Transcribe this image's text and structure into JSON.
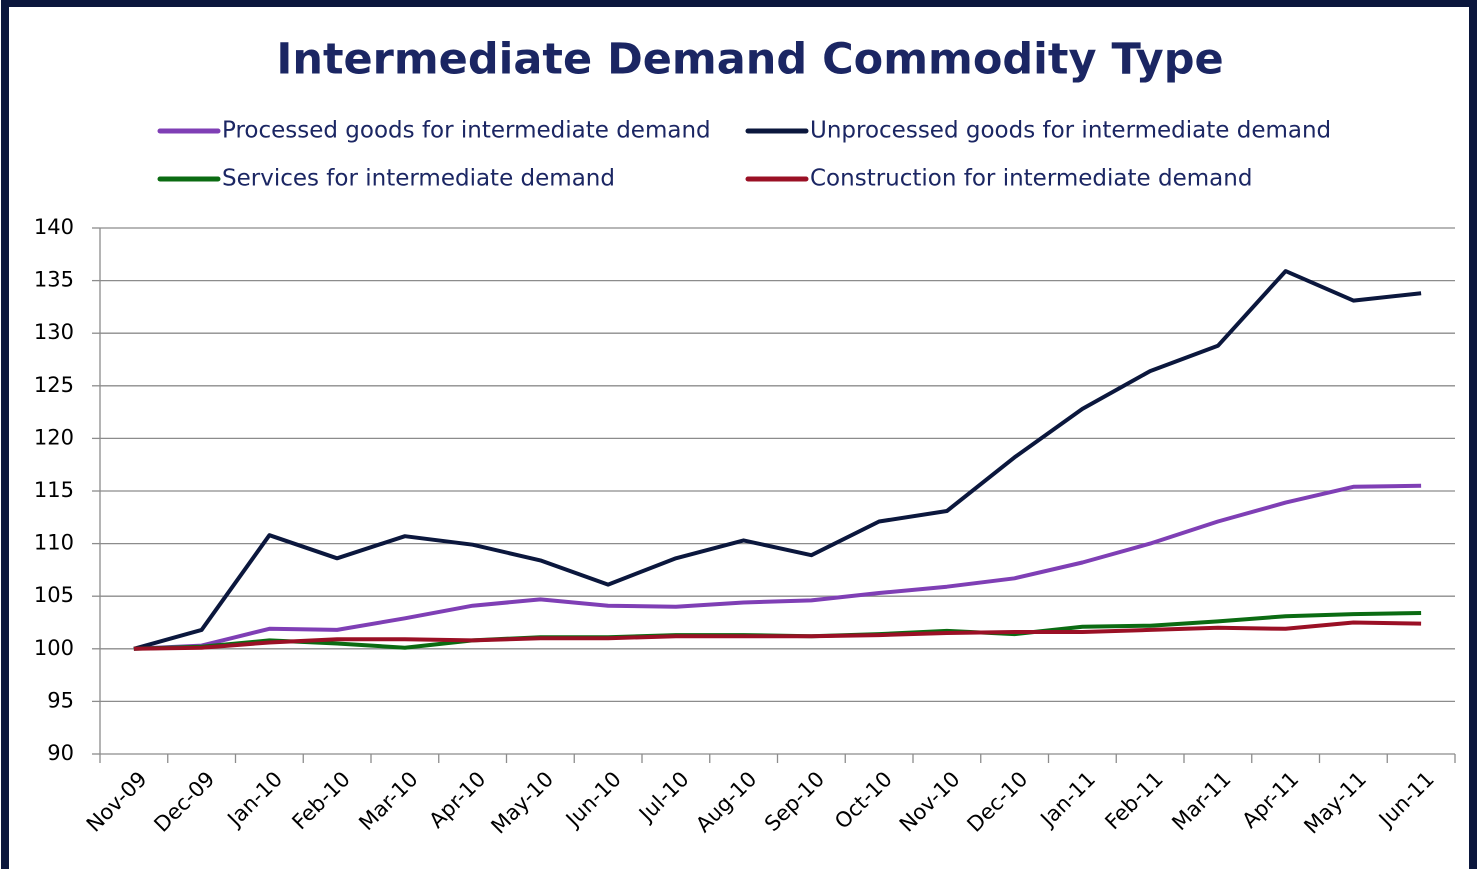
{
  "chart_data": {
    "type": "line",
    "title": "Intermediate Demand Commodity Type",
    "categories": [
      "Nov-09",
      "Dec-09",
      "Jan-10",
      "Feb-10",
      "Mar-10",
      "Apr-10",
      "May-10",
      "Jun-10",
      "Jul-10",
      "Aug-10",
      "Sep-10",
      "Oct-10",
      "Nov-10",
      "Dec-10",
      "Jan-11",
      "Feb-11",
      "Mar-11",
      "Apr-11",
      "May-11",
      "Jun-11"
    ],
    "series": [
      {
        "name": "Processed goods for intermediate demand",
        "color": "#7f3fb5",
        "values": [
          100,
          100.3,
          101.9,
          101.8,
          102.9,
          104.1,
          104.7,
          104.1,
          104.0,
          104.4,
          104.6,
          105.3,
          105.9,
          106.7,
          108.2,
          110.0,
          112.1,
          113.9,
          115.4,
          115.5
        ]
      },
      {
        "name": "Unprocessed goods for intermediate demand",
        "color": "#0b173d",
        "values": [
          100,
          101.8,
          110.8,
          108.6,
          110.7,
          109.9,
          108.4,
          106.1,
          108.6,
          110.3,
          108.9,
          112.1,
          113.1,
          118.2,
          122.8,
          126.4,
          128.8,
          135.9,
          133.1,
          133.8
        ]
      },
      {
        "name": "Services for intermediate demand",
        "color": "#0b6b12",
        "values": [
          100,
          100.2,
          100.8,
          100.5,
          100.1,
          100.8,
          101.1,
          101.1,
          101.3,
          101.3,
          101.2,
          101.4,
          101.7,
          101.4,
          102.1,
          102.2,
          102.6,
          103.1,
          103.3,
          103.4
        ]
      },
      {
        "name": "Construction for intermediate demand",
        "color": "#9a1025",
        "values": [
          100,
          100.1,
          100.6,
          100.9,
          100.9,
          100.8,
          101.0,
          101.0,
          101.2,
          101.2,
          101.2,
          101.3,
          101.5,
          101.6,
          101.6,
          101.8,
          102.0,
          101.9,
          102.5,
          102.4
        ]
      }
    ],
    "ylim": [
      90,
      140
    ],
    "yticks": [
      90,
      95,
      100,
      105,
      110,
      115,
      120,
      125,
      130,
      135,
      140
    ],
    "grid": true
  }
}
